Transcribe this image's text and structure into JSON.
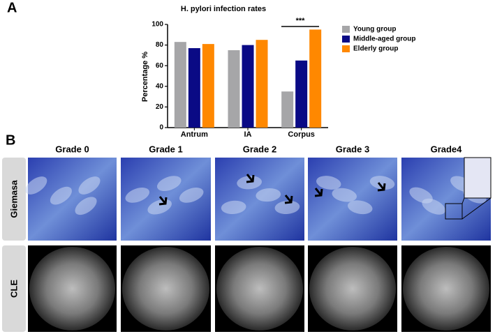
{
  "panel_labels": [
    "A",
    "B"
  ],
  "chart_data": {
    "type": "bar",
    "title": "H. pylori infection rates",
    "ylabel": "Percentage %",
    "categories": [
      "Antrum",
      "IA",
      "Corpus"
    ],
    "series": [
      {
        "name": "Young group",
        "color": "#a6a6a8",
        "values": [
          83,
          75,
          35
        ]
      },
      {
        "name": "Middle-aged group",
        "color": "#0a0a85",
        "values": [
          77,
          80,
          65
        ]
      },
      {
        "name": "Elderly group",
        "color": "#ff8800",
        "values": [
          81,
          85,
          95
        ]
      }
    ],
    "ylim": [
      0,
      100
    ],
    "yticks": [
      0,
      20,
      40,
      60,
      80,
      100
    ],
    "grid": false,
    "annotation": "***",
    "legend": "right"
  },
  "panel_b": {
    "columns": [
      "Grade 0",
      "Grade 1",
      "Grade 2",
      "Grade 3",
      "Grade4"
    ],
    "rows": [
      "Giemasa",
      "CLE"
    ]
  }
}
